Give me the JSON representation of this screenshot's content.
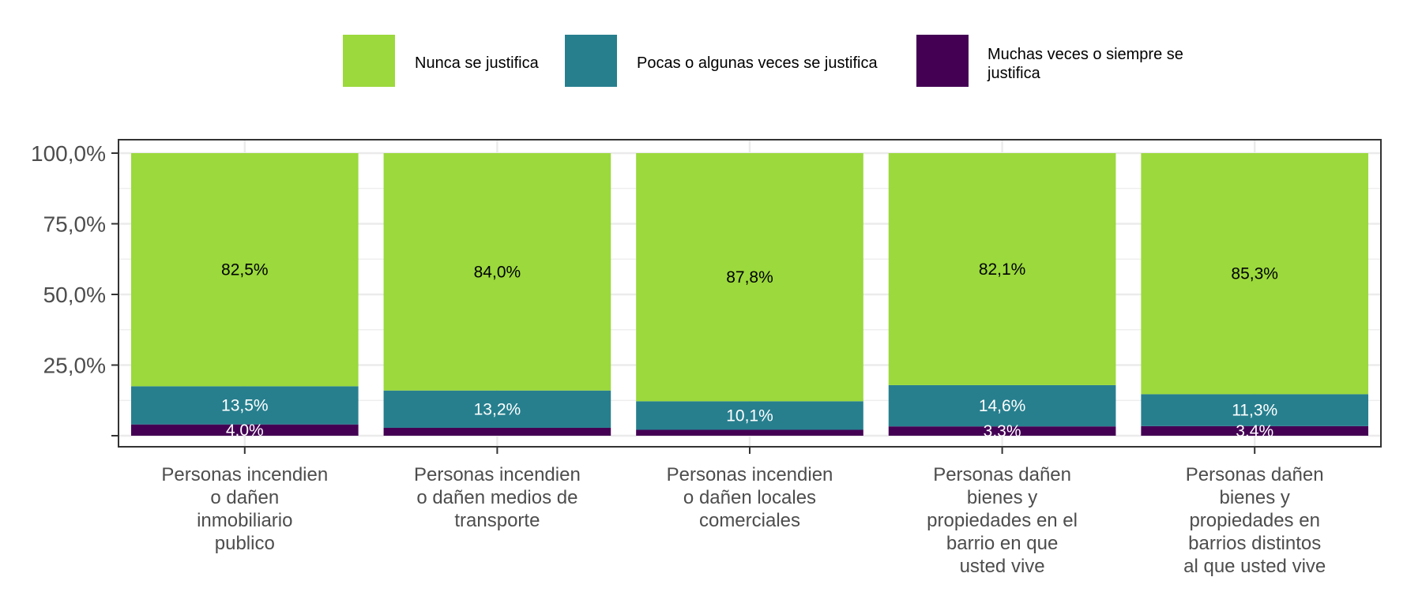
{
  "chart_data": {
    "type": "bar",
    "stacked": true,
    "ylim": [
      0,
      100
    ],
    "yticks": [
      0,
      25,
      50,
      75,
      100
    ],
    "ytick_labels": [
      "",
      "25,0%",
      "50,0%",
      "75,0%",
      "100,0%"
    ],
    "grid": true,
    "legend_position": "top",
    "categories": [
      [
        "Personas incendien",
        "o dañen",
        "inmobiliario",
        "publico"
      ],
      [
        "Personas incendien",
        "o dañen medios de",
        "transporte"
      ],
      [
        "Personas incendien",
        "o dañen locales",
        "comerciales"
      ],
      [
        "Personas dañen",
        "bienes y",
        "propiedades en el",
        "barrio en que",
        "usted vive"
      ],
      [
        "Personas dañen",
        "bienes y",
        "propiedades en",
        "barrios distintos",
        "al que usted vive"
      ]
    ],
    "series": [
      {
        "name": "Muchas veces o siempre se justifica",
        "name_lines": [
          "Muchas veces o siempre se",
          "justifica"
        ],
        "color": "#440154",
        "label_color": "#ffffff",
        "values": [
          4.0,
          2.8,
          2.1,
          3.3,
          3.4
        ],
        "labels": [
          "4,0%",
          "",
          "",
          "3,3%",
          "3,4%"
        ]
      },
      {
        "name": "Pocas o algunas veces se justifica",
        "name_lines": [
          "Pocas o algunas veces se justifica"
        ],
        "color": "#277f8e",
        "label_color": "#ffffff",
        "values": [
          13.5,
          13.2,
          10.1,
          14.6,
          11.3
        ],
        "labels": [
          "13,5%",
          "13,2%",
          "10,1%",
          "14,6%",
          "11,3%"
        ]
      },
      {
        "name": "Nunca se justifica",
        "name_lines": [
          "Nunca se justifica"
        ],
        "color": "#9bd93c",
        "label_color": "#000000",
        "values": [
          82.5,
          84.0,
          87.8,
          82.1,
          85.3
        ],
        "labels": [
          "82,5%",
          "84,0%",
          "87,8%",
          "82,1%",
          "85,3%"
        ]
      }
    ],
    "legend_order": [
      2,
      1,
      0
    ]
  }
}
